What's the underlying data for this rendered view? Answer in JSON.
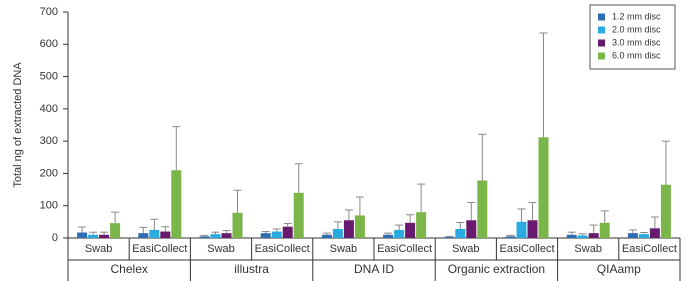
{
  "chart_data": {
    "type": "bar",
    "y_label": "Total ng of extracted DNA",
    "groups": [
      "Chelex",
      "illustra",
      "DNA ID",
      "Organic extraction",
      "QIAamp"
    ],
    "categories": [
      "Swab",
      "EasiCollect",
      "Swab",
      "EasiCollect",
      "Swab",
      "EasiCollect",
      "Swab",
      "EasiCollect",
      "Swab",
      "EasiCollect"
    ],
    "series": [
      {
        "name": "1.2 mm disc",
        "color": "#2e6db4",
        "values": [
          17,
          15,
          5,
          15,
          10,
          10,
          3,
          5,
          10,
          15
        ],
        "errors": [
          17,
          18,
          3,
          5,
          5,
          5,
          2,
          3,
          8,
          10
        ]
      },
      {
        "name": "2.0 mm disc",
        "color": "#29abe2",
        "values": [
          10,
          25,
          12,
          20,
          28,
          25,
          28,
          50,
          8,
          12
        ],
        "errors": [
          8,
          33,
          6,
          8,
          22,
          15,
          20,
          40,
          5,
          5
        ]
      },
      {
        "name": "3.0 mm disc",
        "color": "#6a1a6e",
        "values": [
          10,
          20,
          15,
          35,
          55,
          47,
          55,
          55,
          15,
          30
        ],
        "errors": [
          8,
          15,
          8,
          10,
          32,
          25,
          55,
          55,
          25,
          35
        ]
      },
      {
        "name": "6.0 mm disc",
        "color": "#7ab648",
        "values": [
          46,
          210,
          78,
          140,
          70,
          80,
          178,
          312,
          47,
          165
        ],
        "errors": [
          34,
          135,
          70,
          90,
          57,
          87,
          143,
          323,
          37,
          135
        ]
      }
    ],
    "ylim": [
      0,
      700
    ],
    "yticks": [
      0,
      100,
      200,
      300,
      400,
      500,
      600,
      700
    ],
    "legend": "top-right"
  }
}
